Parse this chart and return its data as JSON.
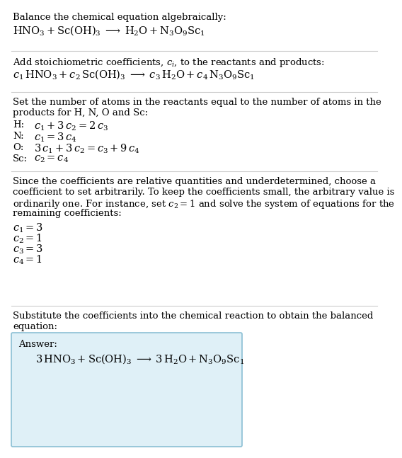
{
  "bg_color": "#ffffff",
  "text_color": "#000000",
  "line_color": "#cccccc",
  "answer_box_facecolor": "#dff0f7",
  "answer_box_edgecolor": "#8bbfd4",
  "fs_body": 9.5,
  "fs_math": 10.5,
  "sections": {
    "s1_title": "Balance the chemical equation algebraically:",
    "s1_eq": "$\\mathrm{HNO_3 + Sc(OH)_3 \\;\\longrightarrow\\; H_2O + N_3O_9Sc_1}$",
    "s2_title": "Add stoichiometric coefficients, $c_i$, to the reactants and products:",
    "s2_eq": "$c_1\\,\\mathrm{HNO_3} + c_2\\,\\mathrm{Sc(OH)_3} \\;\\longrightarrow\\; c_3\\,\\mathrm{H_2O} + c_4\\,\\mathrm{N_3O_9Sc_1}$",
    "s3_intro_l1": "Set the number of atoms in the reactants equal to the number of atoms in the",
    "s3_intro_l2": "products for H, N, O and Sc:",
    "s3_eqs": [
      [
        "H:",
        "$c_1 + 3\\,c_2 = 2\\,c_3$"
      ],
      [
        "N:",
        "$c_1 = 3\\,c_4$"
      ],
      [
        "O:",
        "$3\\,c_1 + 3\\,c_2 = c_3 + 9\\,c_4$"
      ],
      [
        "Sc:",
        "$c_2 = c_4$"
      ]
    ],
    "s4_intro": [
      "Since the coefficients are relative quantities and underdetermined, choose a",
      "coefficient to set arbitrarily. To keep the coefficients small, the arbitrary value is",
      "ordinarily one. For instance, set $c_2 = 1$ and solve the system of equations for the",
      "remaining coefficients:"
    ],
    "s4_vals": [
      "$c_1 = 3$",
      "$c_2 = 1$",
      "$c_3 = 3$",
      "$c_4 = 1$"
    ],
    "s5_intro_l1": "Substitute the coefficients into the chemical reaction to obtain the balanced",
    "s5_intro_l2": "equation:",
    "s5_label": "Answer:",
    "s5_eq": "$3\\,\\mathrm{HNO_3} + \\mathrm{Sc(OH)_3} \\;\\longrightarrow\\; 3\\,\\mathrm{H_2O} + \\mathrm{N_3O_9Sc_1}$"
  }
}
